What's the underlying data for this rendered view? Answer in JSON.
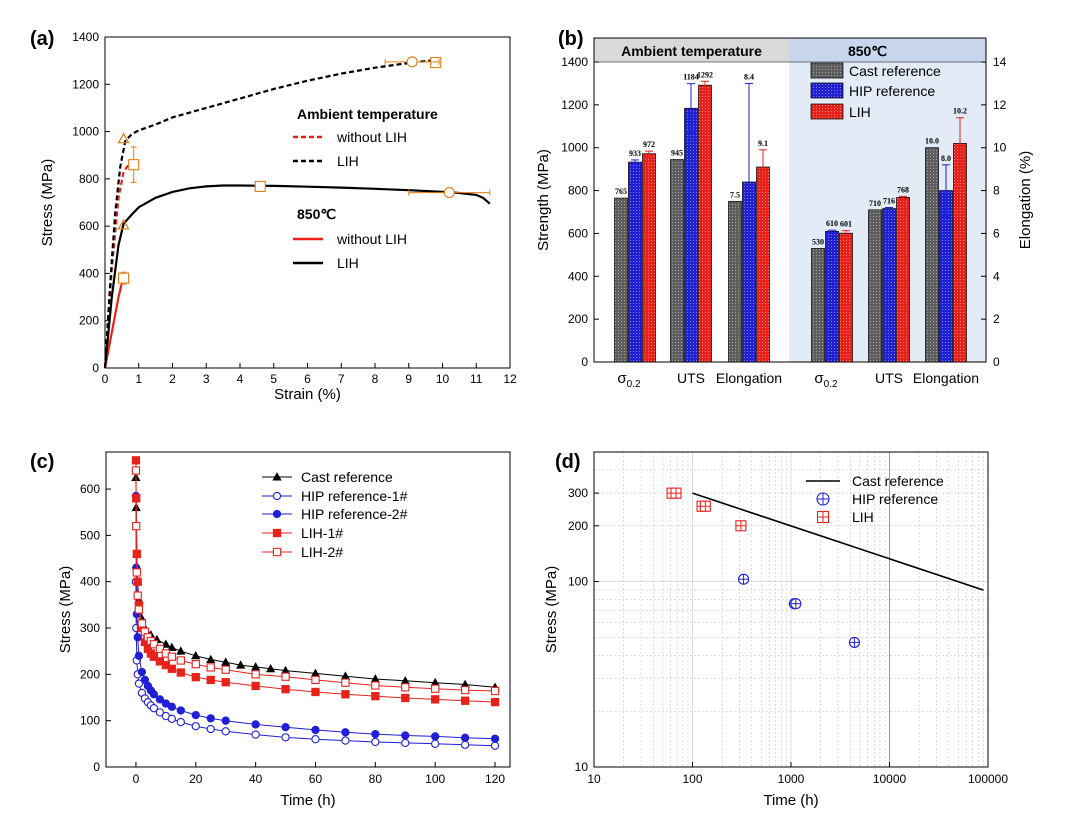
{
  "colors": {
    "red": "#e8221b",
    "blue": "#1f1fd6",
    "black": "#000000",
    "orange": "#e77c13",
    "gray": "#5d5d5d",
    "lightblue": "#e3ebf6",
    "headergray": "#d9d9d9",
    "headerblue": "#c7d6ec"
  },
  "chart_data": [
    {
      "panel": "(a)",
      "type": "line",
      "xlabel": "Strain (%)",
      "ylabel": "Stress (MPa)",
      "xlim": [
        0,
        12
      ],
      "ylim": [
        0,
        1400
      ],
      "xticks": [
        "0",
        "1",
        "2",
        "3",
        "4",
        "5",
        "6",
        "7",
        "8",
        "9",
        "10",
        "11",
        "12"
      ],
      "yticks": [
        "0",
        "200",
        "400",
        "600",
        "800",
        "1000",
        "1200",
        "1400"
      ],
      "legend_groups": [
        {
          "title": "Ambient temperature",
          "entries": [
            "without LIH",
            "LIH"
          ]
        },
        {
          "title": "850℃",
          "entries": [
            "without LIH",
            "LIH"
          ]
        }
      ],
      "series": [
        {
          "name": "Ambient without LIH",
          "style": "dashed",
          "color": "red",
          "x": [
            0,
            0.2,
            0.4,
            0.55,
            0.7,
            0.85,
            0.95
          ],
          "y": [
            0,
            420,
            720,
            830,
            860,
            875,
            880
          ]
        },
        {
          "name": "Ambient LIH",
          "style": "dashed",
          "color": "black",
          "x": [
            0,
            0.15,
            0.3,
            0.45,
            0.6,
            0.8,
            1,
            1.5,
            2,
            3,
            4,
            5,
            6,
            7,
            8,
            9,
            9.5,
            9.9
          ],
          "y": [
            0,
            350,
            650,
            850,
            960,
            990,
            1005,
            1030,
            1060,
            1100,
            1140,
            1180,
            1215,
            1245,
            1270,
            1290,
            1298,
            1305
          ]
        },
        {
          "name": "850 without LIH",
          "style": "solid",
          "color": "red",
          "x": [
            0,
            0.2,
            0.4,
            0.55
          ],
          "y": [
            0,
            150,
            300,
            390
          ]
        },
        {
          "name": "850 LIH",
          "style": "solid",
          "color": "black",
          "x": [
            0,
            0.2,
            0.4,
            0.55,
            0.8,
            1,
            1.5,
            2,
            2.5,
            3,
            3.5,
            4,
            5,
            6,
            7,
            8,
            9,
            10,
            10.5,
            11,
            11.2,
            11.4
          ],
          "y": [
            0,
            300,
            520,
            610,
            650,
            680,
            720,
            745,
            760,
            768,
            772,
            772,
            770,
            767,
            763,
            758,
            752,
            745,
            740,
            732,
            720,
            695
          ]
        }
      ],
      "markers": [
        {
          "label": "without LIH amb UTS",
          "shape": "square",
          "x": 0.85,
          "y": 860,
          "xerr": 0.12,
          "yerr": 75
        },
        {
          "label": "without LIH amb YS",
          "shape": "triangle",
          "x": 0.55,
          "y": 970,
          "xerr": 0,
          "yerr": 0
        },
        {
          "label": "LIH amb UTS",
          "shape": "square",
          "x": 9.8,
          "y": 1292,
          "xerr": 0.1,
          "yerr": 15
        },
        {
          "label": "LIH amb elong",
          "shape": "circle",
          "x": 9.1,
          "y": 1295,
          "xerr": 0.8,
          "yerr": 0
        },
        {
          "label": "850 without LIH",
          "shape": "square",
          "x": 0.55,
          "y": 380,
          "xerr": 0.1,
          "yerr": 25
        },
        {
          "label": "850 YS",
          "shape": "triangle",
          "x": 0.55,
          "y": 605,
          "xerr": 0,
          "yerr": 0
        },
        {
          "label": "850 LIH UTS",
          "shape": "square",
          "x": 4.6,
          "y": 768,
          "xerr": 0.1,
          "yerr": 10
        },
        {
          "label": "850 LIH elong",
          "shape": "circle",
          "x": 10.2,
          "y": 742,
          "xerr": 1.2,
          "yerr": 0
        }
      ]
    },
    {
      "panel": "(b)",
      "type": "bar",
      "ylabel": "Strength (MPa)",
      "y2label": "Elongation (%)",
      "ylim": [
        0,
        1400
      ],
      "y2lim": [
        0,
        14
      ],
      "yticks": [
        "0",
        "200",
        "400",
        "600",
        "800",
        "1000",
        "1200",
        "1400"
      ],
      "y2ticks": [
        "0",
        "2",
        "4",
        "6",
        "8",
        "10",
        "12",
        "14"
      ],
      "headers": [
        "Ambient temperature",
        "850℃"
      ],
      "categories": [
        "σ0.2",
        "UTS",
        "Elongation",
        "σ0.2",
        "UTS",
        "Elongation"
      ],
      "sigma_base": "σ",
      "sigma_sub": "0.2",
      "legend": [
        "Cast reference",
        "HIP reference",
        "LIH"
      ],
      "groups": [
        {
          "axis": "left",
          "values": [
            765,
            933,
            972
          ],
          "errors": [
            0,
            10,
            12
          ],
          "labels": [
            "765",
            "933",
            "972"
          ]
        },
        {
          "axis": "left",
          "values": [
            945,
            1184,
            1292
          ],
          "errors": [
            0,
            115,
            18
          ],
          "labels": [
            "945",
            "1184",
            "1292"
          ]
        },
        {
          "axis": "right",
          "values": [
            7.5,
            8.4,
            9.1
          ],
          "errors": [
            0,
            4.6,
            0.8
          ],
          "labels": [
            "7.5",
            "8.4",
            "9.1"
          ]
        },
        {
          "axis": "left",
          "values": [
            530,
            610,
            601
          ],
          "errors": [
            0,
            5,
            12
          ],
          "labels": [
            "530",
            "610",
            "601"
          ]
        },
        {
          "axis": "left",
          "values": [
            710,
            716,
            768
          ],
          "errors": [
            0,
            5,
            5
          ],
          "labels": [
            "710",
            "716",
            "768"
          ]
        },
        {
          "axis": "right",
          "values": [
            10.0,
            8.0,
            10.2
          ],
          "errors": [
            0,
            1.2,
            1.2
          ],
          "labels": [
            "10.0",
            "8.0",
            "10.2"
          ]
        }
      ]
    },
    {
      "panel": "(c)",
      "type": "line",
      "xlabel": "Time (h)",
      "ylabel": "Stress (MPa)",
      "xlim": [
        -10,
        125
      ],
      "ylim": [
        0,
        680
      ],
      "xticks": [
        "0",
        "20",
        "40",
        "60",
        "80",
        "100",
        "120"
      ],
      "yticks": [
        "0",
        "100",
        "200",
        "300",
        "400",
        "500",
        "600"
      ],
      "series": [
        {
          "name": "Cast reference",
          "marker": "triangle-filled",
          "color": "black",
          "x": [
            0,
            0.1,
            0.3,
            0.6,
            1,
            2,
            3,
            5,
            7,
            10,
            12,
            15,
            20,
            25,
            30,
            35,
            40,
            45,
            50,
            60,
            70,
            80,
            90,
            100,
            110,
            120
          ],
          "y": [
            625,
            560,
            460,
            400,
            360,
            320,
            300,
            285,
            275,
            265,
            258,
            250,
            240,
            232,
            226,
            220,
            216,
            212,
            208,
            202,
            196,
            190,
            186,
            182,
            178,
            172
          ]
        },
        {
          "name": "HIP reference-1#",
          "marker": "circle-open",
          "color": "blue",
          "x": [
            0,
            0.1,
            0.3,
            0.6,
            1,
            2,
            3,
            4,
            5,
            6,
            8,
            10,
            12,
            15,
            20,
            25,
            30,
            40,
            50,
            60,
            70,
            80,
            90,
            100,
            110,
            120
          ],
          "y": [
            400,
            300,
            230,
            200,
            180,
            160,
            148,
            140,
            133,
            127,
            118,
            110,
            104,
            97,
            88,
            82,
            77,
            70,
            64,
            60,
            57,
            54,
            52,
            50,
            48,
            46
          ]
        },
        {
          "name": "HIP reference-2#",
          "marker": "circle-filled",
          "color": "blue",
          "x": [
            0,
            0.1,
            0.3,
            0.6,
            1,
            2,
            3,
            4,
            5,
            6,
            8,
            10,
            12,
            15,
            20,
            25,
            30,
            40,
            50,
            60,
            70,
            80,
            90,
            100,
            110,
            120
          ],
          "y": [
            585,
            430,
            330,
            280,
            240,
            205,
            188,
            175,
            165,
            157,
            146,
            137,
            130,
            122,
            112,
            105,
            100,
            92,
            86,
            80,
            75,
            71,
            68,
            66,
            63,
            61
          ]
        },
        {
          "name": "LIH-1#",
          "marker": "square-filled",
          "color": "red",
          "x": [
            0,
            0.1,
            0.3,
            0.6,
            1,
            2,
            3,
            4,
            5,
            6,
            8,
            10,
            12,
            15,
            20,
            25,
            30,
            40,
            50,
            60,
            70,
            80,
            90,
            100,
            110,
            120
          ],
          "y": [
            662,
            580,
            460,
            400,
            350,
            300,
            270,
            255,
            245,
            238,
            228,
            220,
            212,
            204,
            194,
            188,
            183,
            175,
            168,
            162,
            157,
            153,
            149,
            146,
            143,
            140
          ]
        },
        {
          "name": "LIH-2#",
          "marker": "square-open",
          "color": "red",
          "x": [
            0,
            0.1,
            0.3,
            0.6,
            1,
            2,
            3,
            4,
            5,
            6,
            8,
            10,
            12,
            15,
            20,
            25,
            30,
            40,
            50,
            60,
            70,
            80,
            90,
            100,
            110,
            120
          ],
          "y": [
            640,
            520,
            420,
            370,
            340,
            310,
            292,
            280,
            272,
            265,
            255,
            245,
            238,
            230,
            222,
            215,
            210,
            200,
            195,
            188,
            182,
            176,
            172,
            169,
            166,
            164
          ]
        }
      ]
    },
    {
      "panel": "(d)",
      "type": "scatter",
      "xlabel": "Time (h)",
      "ylabel": "Stress (MPa)",
      "xscale": "log",
      "yscale": "log",
      "xlim": [
        10,
        100000
      ],
      "ylim": [
        10,
        500
      ],
      "xticks": [
        "10",
        "100",
        "1000",
        "10000",
        "100000"
      ],
      "yticks": [
        "10",
        "100",
        "200",
        "300"
      ],
      "series": [
        {
          "name": "Cast reference",
          "marker": "line",
          "color": "black",
          "x": [
            100,
            90000
          ],
          "y": [
            300,
            90
          ]
        },
        {
          "name": "HIP reference",
          "marker": "circle-cross",
          "color": "blue",
          "x": [
            330,
            1080,
            1120,
            4400
          ],
          "y": [
            103,
            76,
            76,
            47
          ]
        },
        {
          "name": "LIH",
          "marker": "square-cross",
          "color": "red",
          "x": [
            62,
            68,
            125,
            135,
            310
          ],
          "y": [
            300,
            300,
            255,
            255,
            200
          ]
        }
      ]
    }
  ]
}
